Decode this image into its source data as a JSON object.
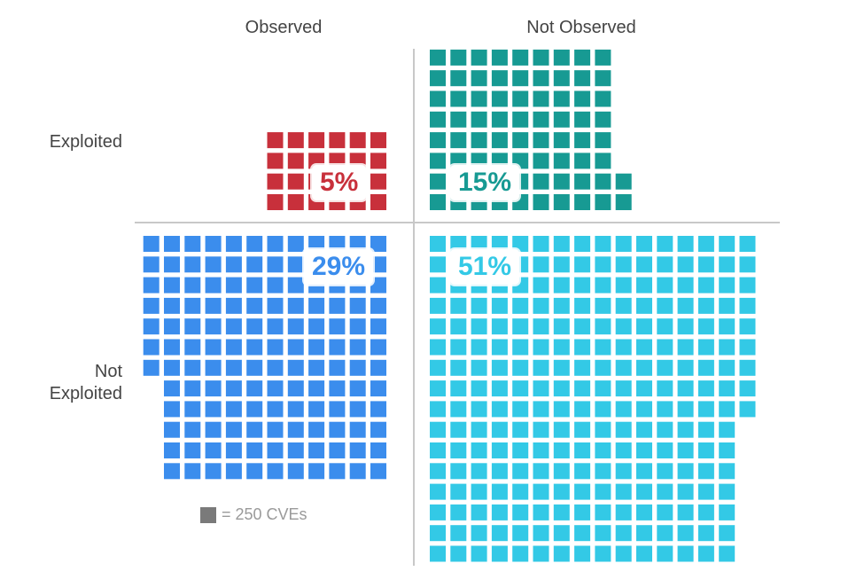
{
  "chart_data": {
    "type": "waffle",
    "columns": [
      "Observed",
      "Not Observed"
    ],
    "rows": [
      "Exploited",
      "Not Exploited"
    ],
    "unit_label": "= 250 CVEs",
    "cells": [
      {
        "row": "Exploited",
        "column": "Observed",
        "percent_label": "5%",
        "squares": 24,
        "color": "#c8303b"
      },
      {
        "row": "Exploited",
        "column": "Not Observed",
        "percent_label": "15%",
        "squares": 74,
        "color": "#179a93"
      },
      {
        "row": "Not Exploited",
        "column": "Observed",
        "percent_label": "29%",
        "squares": 139,
        "color": "#3b8ded"
      },
      {
        "row": "Not Exploited",
        "column": "Not Observed",
        "percent_label": "51%",
        "squares": 249,
        "color": "#33c9e6"
      }
    ],
    "divider_color": "#c8c8c8"
  }
}
